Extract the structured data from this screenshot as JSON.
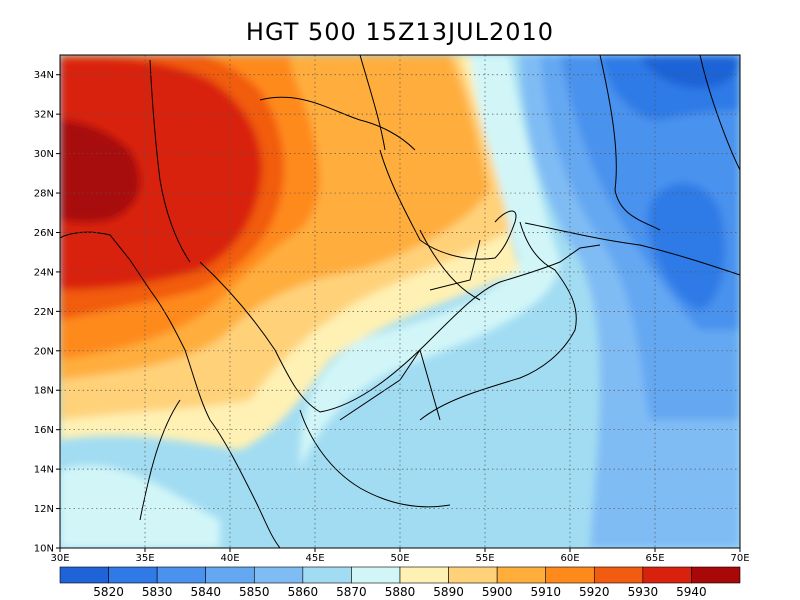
{
  "title": "HGT 500 15Z13JUL2010",
  "map": {
    "lon_range": [
      30,
      70
    ],
    "lat_range": [
      10,
      35
    ],
    "x_ticks": [
      "30E",
      "35E",
      "40E",
      "45E",
      "50E",
      "55E",
      "60E",
      "65E",
      "70E"
    ],
    "y_ticks": [
      "10N",
      "12N",
      "14N",
      "16N",
      "18N",
      "20N",
      "22N",
      "24N",
      "26N",
      "28N",
      "30N",
      "32N",
      "34N"
    ],
    "grid": "dotted"
  },
  "colorbar": {
    "colors": [
      "#1e64d8",
      "#2f7ae6",
      "#4a92ee",
      "#65a8f2",
      "#80bcf4",
      "#a2dcf2",
      "#d2f6f8",
      "#fff1b4",
      "#ffd27a",
      "#ffae3c",
      "#ff8a1c",
      "#f25c10",
      "#d9220e",
      "#a80808"
    ],
    "labels": [
      "5820",
      "5830",
      "5840",
      "5850",
      "5860",
      "5870",
      "5880",
      "5890",
      "5900",
      "5910",
      "5920",
      "5930",
      "5940"
    ]
  },
  "fields": {
    "background": "#a2dcf2",
    "c5820": "#1e64d8",
    "c5830": "#2f7ae6",
    "c5840": "#4a92ee",
    "c5850": "#65a8f2",
    "c5860": "#80bcf4",
    "c5880": "#d2f6f8",
    "c5890": "#fff1b4",
    "c5900": "#ffd27a",
    "c5910": "#ffae3c",
    "c5920": "#ff8a1c",
    "c5930": "#f25c10",
    "c5940": "#d9220e",
    "c5950": "#a80808"
  }
}
